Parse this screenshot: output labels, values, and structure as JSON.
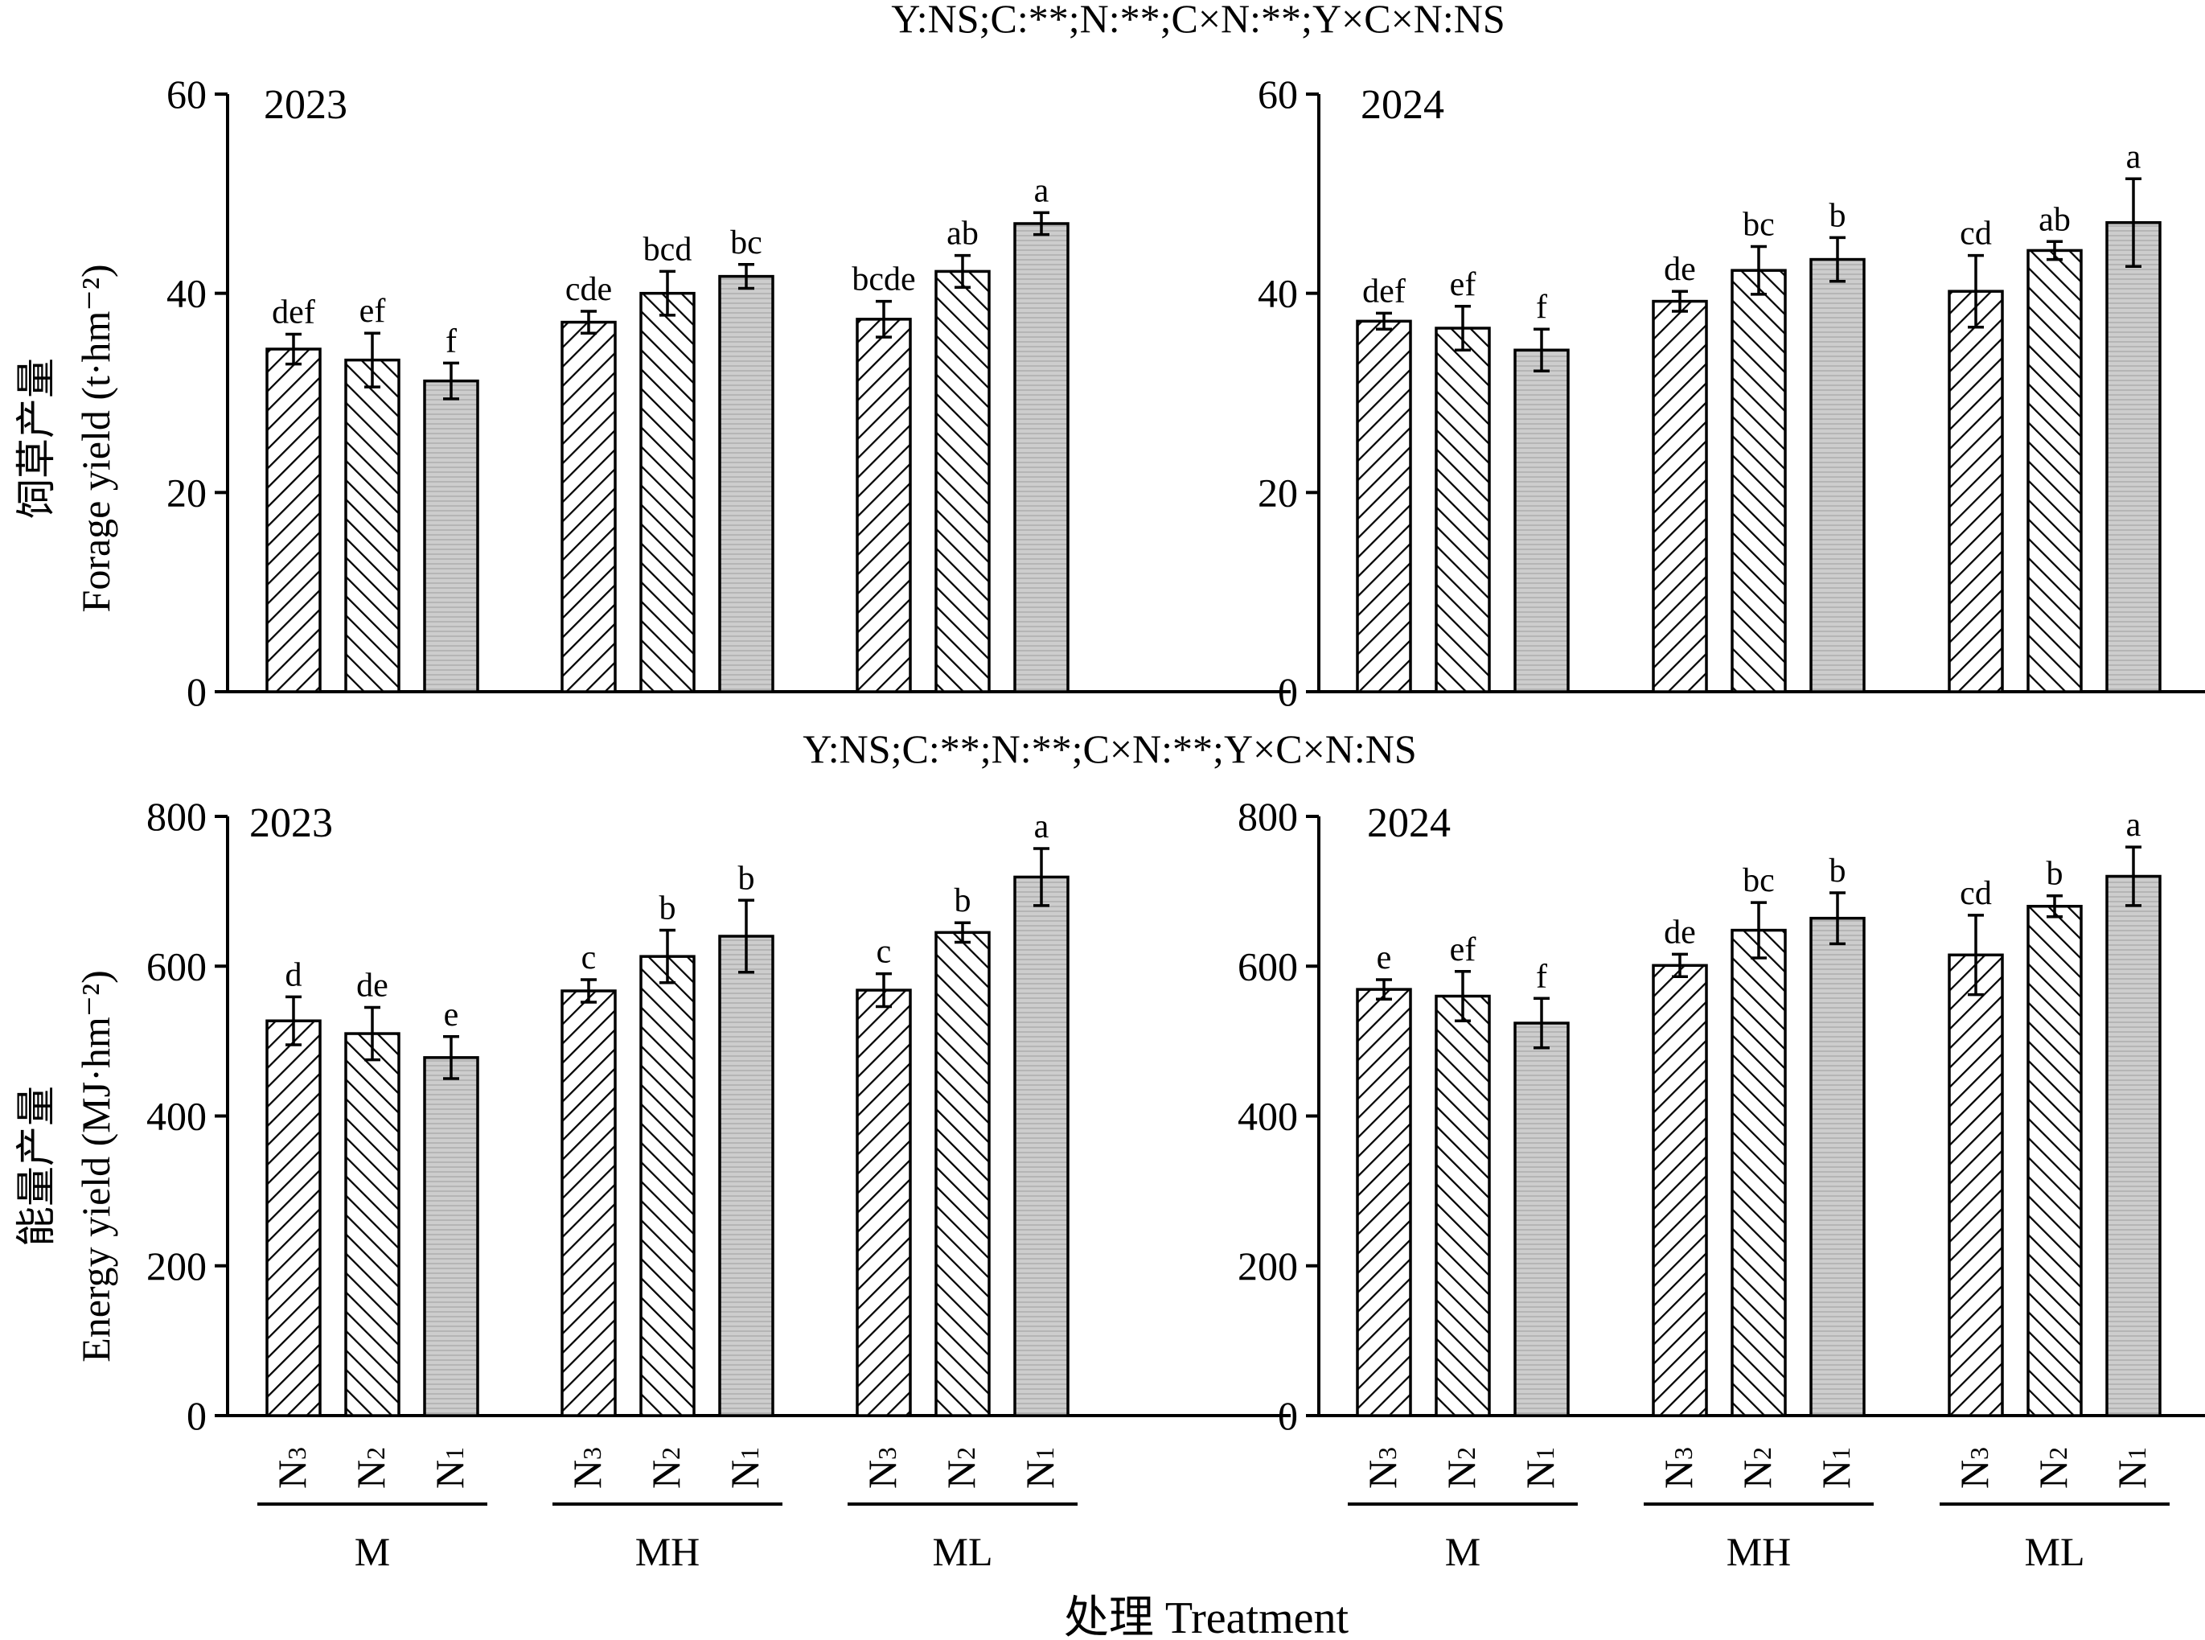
{
  "chart_data": [
    {
      "type": "bar",
      "panel": "top-left",
      "year": "2023",
      "stats": "Y:NS;C:**;N:**;C×N:**;Y×C×N:NS",
      "ylabel_cn": "饲草产量",
      "ylabel_en": "Forage yield (t·hm⁻²)",
      "ylim": [
        0,
        60
      ],
      "yticks": [
        "0",
        "20",
        "40",
        "60"
      ],
      "groups": [
        "M",
        "MH",
        "ML"
      ],
      "n_levels": [
        "N3",
        "N2",
        "N1"
      ],
      "values": [
        34.4,
        33.3,
        31.2,
        37.1,
        40.0,
        41.7,
        37.4,
        42.2,
        47.0
      ],
      "errors": [
        1.5,
        2.7,
        1.8,
        1.1,
        2.2,
        1.2,
        1.8,
        1.6,
        1.1
      ],
      "labels": [
        "def",
        "ef",
        "f",
        "cde",
        "bcd",
        "bc",
        "bcde",
        "ab",
        "a"
      ]
    },
    {
      "type": "bar",
      "panel": "top-right",
      "year": "2024",
      "ylim": [
        0,
        60
      ],
      "yticks": [
        "0",
        "20",
        "40",
        "60"
      ],
      "groups": [
        "M",
        "MH",
        "ML"
      ],
      "n_levels": [
        "N3",
        "N2",
        "N1"
      ],
      "values": [
        37.2,
        36.5,
        34.3,
        39.2,
        42.3,
        43.4,
        40.2,
        44.3,
        47.1
      ],
      "errors": [
        0.8,
        2.2,
        2.1,
        1.0,
        2.4,
        2.2,
        3.6,
        0.9,
        4.4
      ],
      "labels": [
        "def",
        "ef",
        "f",
        "de",
        "bc",
        "b",
        "cd",
        "ab",
        "a"
      ]
    },
    {
      "type": "bar",
      "panel": "bottom-left",
      "year": "2023",
      "stats": "Y:NS;C:**;N:**;C×N:**;Y×C×N:NS",
      "ylabel_cn": "能量产量",
      "ylabel_en": "Energy yield (MJ·hm⁻²)",
      "ylim": [
        0,
        800
      ],
      "yticks": [
        "0",
        "200",
        "400",
        "600",
        "800"
      ],
      "groups": [
        "M",
        "MH",
        "ML"
      ],
      "n_levels": [
        "N3",
        "N2",
        "N1"
      ],
      "values": [
        527,
        510,
        478,
        567,
        613,
        640,
        568,
        645,
        719
      ],
      "errors": [
        32,
        35,
        28,
        15,
        35,
        48,
        22,
        13,
        38
      ],
      "labels": [
        "d",
        "de",
        "e",
        "c",
        "b",
        "b",
        "c",
        "b",
        "a"
      ]
    },
    {
      "type": "bar",
      "panel": "bottom-right",
      "year": "2024",
      "ylim": [
        0,
        800
      ],
      "yticks": [
        "0",
        "200",
        "400",
        "600",
        "800"
      ],
      "groups": [
        "M",
        "MH",
        "ML"
      ],
      "n_levels": [
        "N3",
        "N2",
        "N1"
      ],
      "values": [
        569,
        560,
        524,
        601,
        648,
        664,
        615,
        680,
        720
      ],
      "errors": [
        13,
        33,
        33,
        15,
        37,
        34,
        53,
        14,
        39
      ],
      "labels": [
        "e",
        "ef",
        "f",
        "de",
        "bc",
        "b",
        "cd",
        "b",
        "a"
      ]
    }
  ],
  "xlabel": "处理 Treatment",
  "colors": {
    "line": "#000000",
    "bar_fill_hatched": "#ffffff",
    "bar_fill_n1": "#cdcdcd",
    "bar_stripe_n1": "#b5b5b5"
  }
}
